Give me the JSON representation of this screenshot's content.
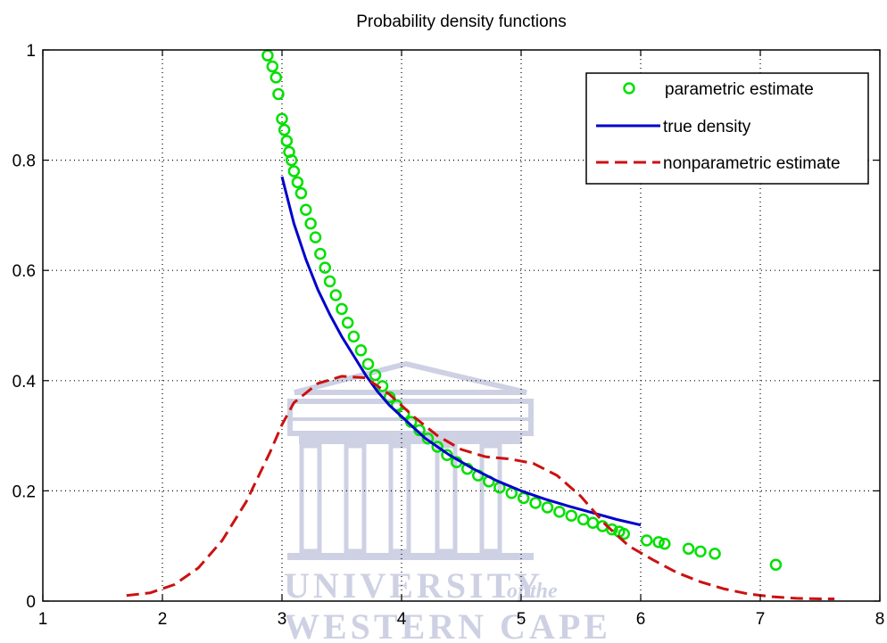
{
  "chart_data": {
    "type": "line",
    "title": "Probability density functions",
    "xlabel": "",
    "ylabel": "",
    "xlim": [
      1,
      8
    ],
    "ylim": [
      0,
      1
    ],
    "xticks": [
      "1",
      "2",
      "3",
      "4",
      "5",
      "6",
      "7",
      "8"
    ],
    "yticks": [
      "0",
      "0.2",
      "0.4",
      "0.6",
      "0.8",
      "1"
    ],
    "grid": true,
    "legend_position": "top-right",
    "series": [
      {
        "name": "parametric estimate",
        "style": "markers",
        "marker": "circle",
        "color": "#00e000",
        "x": [
          2.88,
          2.92,
          2.95,
          2.97,
          3.0,
          3.02,
          3.04,
          3.06,
          3.08,
          3.1,
          3.13,
          3.16,
          3.2,
          3.24,
          3.28,
          3.32,
          3.36,
          3.4,
          3.45,
          3.5,
          3.55,
          3.6,
          3.66,
          3.72,
          3.78,
          3.84,
          3.9,
          3.96,
          4.02,
          4.08,
          4.15,
          4.22,
          4.3,
          4.38,
          4.46,
          4.55,
          4.64,
          4.73,
          4.82,
          4.92,
          5.02,
          5.12,
          5.22,
          5.32,
          5.42,
          5.52,
          5.6,
          5.68,
          5.76,
          5.82,
          5.86,
          6.05,
          6.15,
          6.2,
          6.4,
          6.5,
          6.62,
          7.13
        ],
        "y": [
          0.99,
          0.97,
          0.95,
          0.92,
          0.875,
          0.855,
          0.835,
          0.815,
          0.8,
          0.78,
          0.76,
          0.74,
          0.71,
          0.685,
          0.66,
          0.63,
          0.605,
          0.58,
          0.555,
          0.53,
          0.505,
          0.48,
          0.455,
          0.43,
          0.41,
          0.39,
          0.37,
          0.355,
          0.34,
          0.325,
          0.31,
          0.295,
          0.28,
          0.265,
          0.252,
          0.24,
          0.228,
          0.217,
          0.206,
          0.196,
          0.187,
          0.178,
          0.17,
          0.162,
          0.155,
          0.148,
          0.142,
          0.136,
          0.13,
          0.126,
          0.122,
          0.11,
          0.107,
          0.104,
          0.095,
          0.09,
          0.086,
          0.066
        ]
      },
      {
        "name": "true density",
        "style": "line",
        "color": "#0000cc",
        "x": [
          3.0,
          3.1,
          3.2,
          3.3,
          3.4,
          3.5,
          3.6,
          3.7,
          3.8,
          3.9,
          4.0,
          4.2,
          4.4,
          4.6,
          4.8,
          5.0,
          5.2,
          5.4,
          5.6,
          5.8,
          6.0
        ],
        "y": [
          0.77,
          0.685,
          0.62,
          0.565,
          0.52,
          0.48,
          0.445,
          0.41,
          0.38,
          0.355,
          0.335,
          0.295,
          0.265,
          0.24,
          0.218,
          0.2,
          0.185,
          0.172,
          0.16,
          0.148,
          0.138
        ]
      },
      {
        "name": "nonparametric estimate",
        "style": "dashed",
        "color": "#cc1111",
        "x": [
          1.7,
          1.9,
          2.1,
          2.3,
          2.5,
          2.7,
          2.9,
          3.0,
          3.1,
          3.3,
          3.5,
          3.7,
          3.9,
          4.1,
          4.3,
          4.5,
          4.7,
          4.9,
          5.1,
          5.3,
          5.5,
          5.7,
          5.9,
          6.1,
          6.3,
          6.5,
          6.7,
          6.9,
          7.1,
          7.3,
          7.5,
          7.62
        ],
        "y": [
          0.01,
          0.015,
          0.03,
          0.06,
          0.11,
          0.18,
          0.27,
          0.32,
          0.36,
          0.395,
          0.408,
          0.405,
          0.375,
          0.335,
          0.3,
          0.275,
          0.262,
          0.258,
          0.25,
          0.228,
          0.19,
          0.14,
          0.1,
          0.075,
          0.052,
          0.035,
          0.022,
          0.013,
          0.008,
          0.005,
          0.004,
          0.004
        ]
      }
    ]
  },
  "watermark": {
    "line1_main": "UNIVERSITY",
    "line1_italic": "of the",
    "line2": "WESTERN CAPE",
    "color": "#c9cde0"
  }
}
